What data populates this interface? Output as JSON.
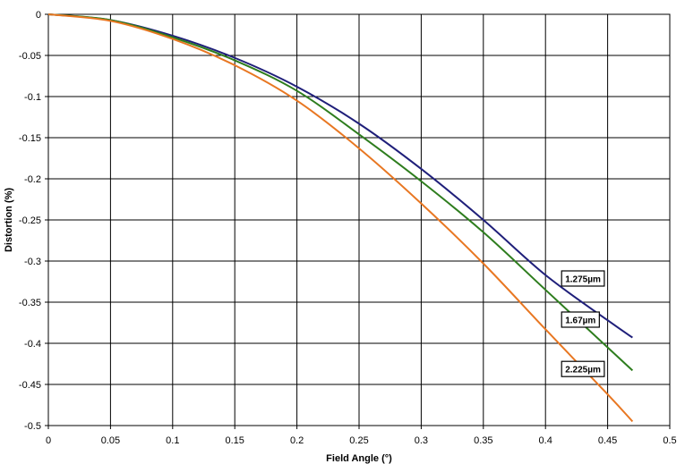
{
  "chart_data": {
    "type": "line",
    "xlabel": "Field Angle (°)",
    "ylabel": "Distortion (%)",
    "xlim": [
      0,
      0.5
    ],
    "ylim": [
      -0.5,
      0
    ],
    "x_ticks": [
      "0",
      "0.05",
      "0.1",
      "0.15",
      "0.2",
      "0.25",
      "0.3",
      "0.35",
      "0.4",
      "0.45",
      "0.5"
    ],
    "y_ticks": [
      "0",
      "-0.05",
      "-0.1",
      "-0.15",
      "-0.2",
      "-0.25",
      "-0.3",
      "-0.35",
      "-0.4",
      "-0.45",
      "-0.5"
    ],
    "grid": true,
    "colors": {
      "background": "#ffffff",
      "grid": "#000000"
    },
    "series": [
      {
        "name": "1.275µm",
        "color": "#1f1f7a",
        "x": [
          0,
          0.05,
          0.1,
          0.15,
          0.2,
          0.25,
          0.3,
          0.35,
          0.4,
          0.45,
          0.47
        ],
        "y": [
          0,
          -0.007,
          -0.026,
          -0.053,
          -0.088,
          -0.133,
          -0.188,
          -0.25,
          -0.317,
          -0.372,
          -0.393
        ]
      },
      {
        "name": "1.67µm",
        "color": "#2e7d1e",
        "x": [
          0,
          0.05,
          0.1,
          0.15,
          0.2,
          0.25,
          0.3,
          0.35,
          0.4,
          0.45,
          0.47
        ],
        "y": [
          0,
          -0.007,
          -0.028,
          -0.056,
          -0.093,
          -0.146,
          -0.203,
          -0.265,
          -0.335,
          -0.405,
          -0.433
        ]
      },
      {
        "name": "2.225µm",
        "color": "#e87722",
        "x": [
          0,
          0.05,
          0.1,
          0.15,
          0.2,
          0.25,
          0.3,
          0.35,
          0.4,
          0.45,
          0.47
        ],
        "y": [
          0,
          -0.008,
          -0.03,
          -0.062,
          -0.105,
          -0.163,
          -0.23,
          -0.303,
          -0.383,
          -0.462,
          -0.495
        ]
      }
    ]
  }
}
